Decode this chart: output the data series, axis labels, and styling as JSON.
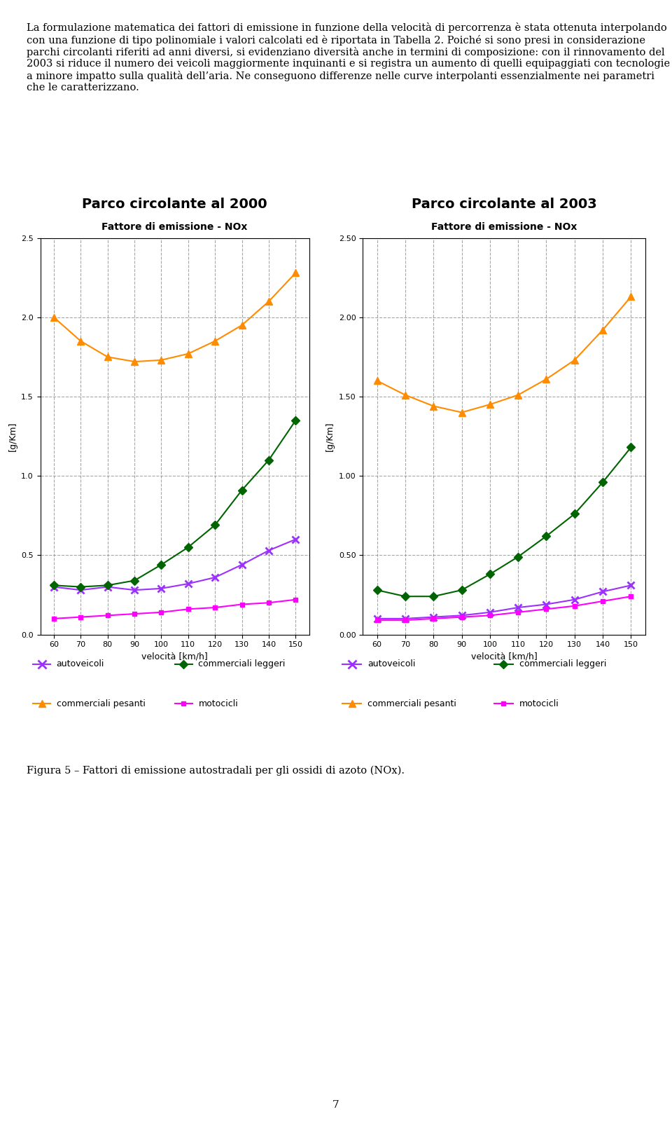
{
  "velocita": [
    60,
    70,
    80,
    90,
    100,
    110,
    120,
    130,
    140,
    150
  ],
  "chart1_title": "Parco circolante al 2000",
  "chart2_title": "Parco circolante al 2003",
  "subtitle": "Fattore di emissione - NOx",
  "ylabel": "[g/Km]",
  "xlabel": "velocità [km/h]",
  "chart1": {
    "autoveicoli": [
      0.3,
      0.28,
      0.3,
      0.28,
      0.29,
      0.32,
      0.36,
      0.44,
      0.53,
      0.6
    ],
    "commerciali_leggeri": [
      0.31,
      0.3,
      0.31,
      0.34,
      0.44,
      0.55,
      0.69,
      0.91,
      1.1,
      1.35
    ],
    "commerciali_pesanti": [
      2.0,
      1.85,
      1.75,
      1.72,
      1.73,
      1.77,
      1.85,
      1.95,
      2.1,
      2.28
    ],
    "motocicli": [
      0.1,
      0.11,
      0.12,
      0.13,
      0.14,
      0.16,
      0.17,
      0.19,
      0.2,
      0.22
    ]
  },
  "chart2": {
    "autoveicoli": [
      0.1,
      0.1,
      0.11,
      0.12,
      0.14,
      0.17,
      0.19,
      0.22,
      0.27,
      0.31
    ],
    "commerciali_leggeri": [
      0.28,
      0.24,
      0.24,
      0.28,
      0.38,
      0.49,
      0.62,
      0.76,
      0.96,
      1.18
    ],
    "commerciali_pesanti": [
      1.6,
      1.51,
      1.44,
      1.4,
      1.45,
      1.51,
      1.61,
      1.73,
      1.92,
      2.13
    ],
    "motocicli": [
      0.09,
      0.09,
      0.1,
      0.11,
      0.12,
      0.14,
      0.16,
      0.18,
      0.21,
      0.24
    ]
  },
  "chart1_ylim": [
    0.0,
    2.5
  ],
  "chart1_yticks": [
    0.0,
    0.5,
    1.0,
    1.5,
    2.0,
    2.5
  ],
  "chart2_ylim": [
    0.0,
    2.5
  ],
  "chart2_yticks": [
    0.0,
    0.5,
    1.0,
    1.5,
    2.0,
    2.5
  ],
  "colors": {
    "autoveicoli": "#9B30FF",
    "commerciali_leggeri": "#006400",
    "commerciali_pesanti": "#FF8C00",
    "motocicli": "#FF00FF"
  },
  "legend_labels": {
    "autoveicoli": "autoveicoli",
    "commerciali_leggeri": "commerciali leggeri",
    "commerciali_pesanti": "commerciali pesanti",
    "motocicli": "motocicli"
  },
  "page_number": "7",
  "caption": "Figura 5 – Fattori di emissione autostradali per gli ossidi di azoto (NOx).",
  "text_block": "La formulazione matematica dei fattori di emissione in funzione della velocità di percorrenza è stata ottenuta interpolando con una funzione di tipo polinomiale i valori calcolati ed è riportata in Tabella 2. Poiché si sono presi in considerazione parchi circolanti riferiti ad anni diversi, si evidenziano diversità anche in termini di composizione: con il rinnovamento del 2003 si riduce il numero dei veicoli maggiormente inquinanti e si registra un aumento di quelli equipaggiati con tecnologie a minore impatto sulla qualità dell’aria. Ne conseguono differenze nelle curve interpolanti essenzialmente nei parametri che le caratterizzano."
}
